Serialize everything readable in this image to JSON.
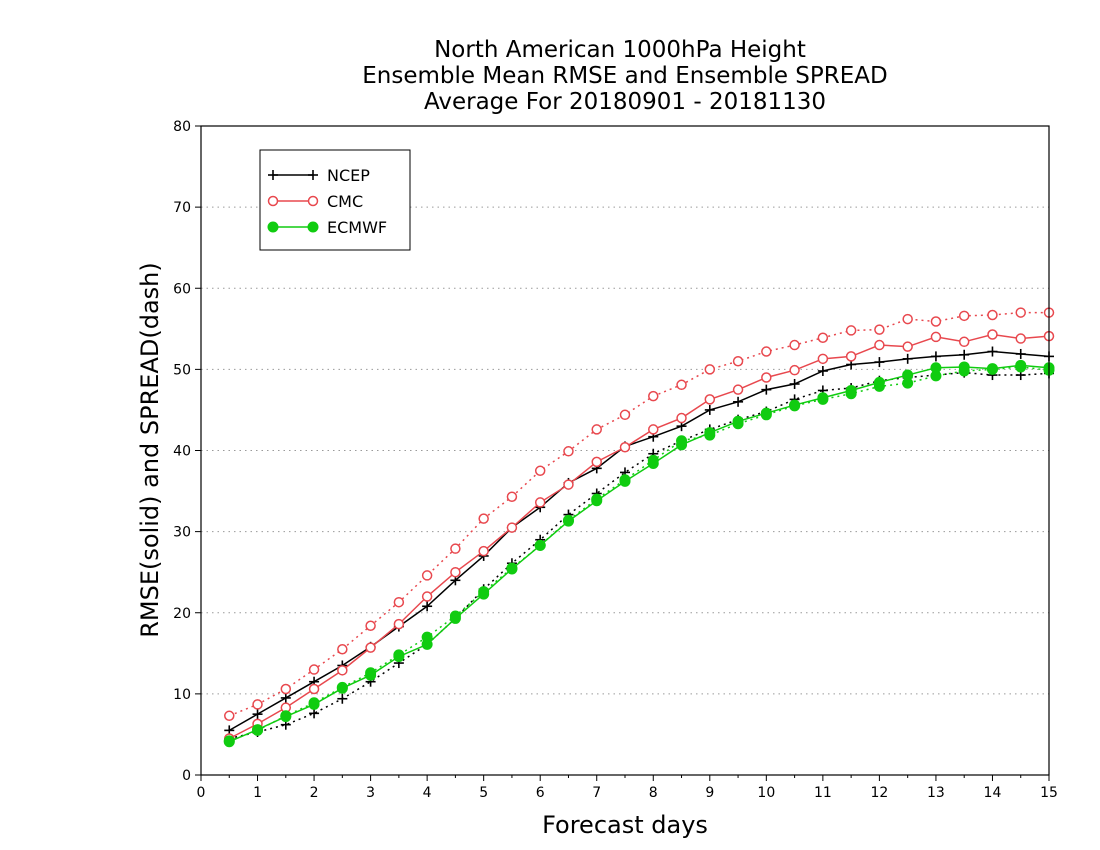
{
  "chart_data": {
    "type": "line",
    "title_lines": [
      "North American 1000hPa Height",
      "Ensemble Mean RMSE and Ensemble SPREAD",
      "Average For 20180901 - 20181130"
    ],
    "xlabel": "Forecast days",
    "ylabel": "RMSE(solid) and SPREAD(dash)",
    "xlim": [
      0,
      15
    ],
    "ylim": [
      0,
      80
    ],
    "xticks": [
      0,
      1,
      2,
      3,
      4,
      5,
      6,
      7,
      8,
      9,
      10,
      11,
      12,
      13,
      14,
      15
    ],
    "yticks": [
      0,
      10,
      20,
      30,
      40,
      50,
      60,
      70,
      80
    ],
    "grid": "horizontal dotted",
    "legend_position": "top-left",
    "x": [
      0.5,
      1,
      1.5,
      2,
      2.5,
      3,
      3.5,
      4,
      4.5,
      5,
      5.5,
      6,
      6.5,
      7,
      7.5,
      8,
      8.5,
      9,
      9.5,
      10,
      10.5,
      11,
      11.5,
      12,
      12.5,
      13,
      13.5,
      14,
      14.5,
      15
    ],
    "series": [
      {
        "name": "NCEP",
        "color": "#000000",
        "marker": "plus",
        "rmse": [
          5.5,
          7.5,
          9.5,
          11.5,
          13.5,
          15.8,
          18.3,
          20.8,
          24.0,
          27.0,
          30.5,
          33.0,
          36.0,
          37.8,
          40.5,
          41.7,
          43.0,
          45.0,
          46.0,
          47.5,
          48.2,
          49.8,
          50.6,
          50.9,
          51.3,
          51.6,
          51.8,
          52.2,
          51.9,
          51.6
        ],
        "spread": [
          4.5,
          5.3,
          6.2,
          7.6,
          9.4,
          11.5,
          13.8,
          16.1,
          19.3,
          22.9,
          26.1,
          29.0,
          32.1,
          34.7,
          37.3,
          39.6,
          41.2,
          42.6,
          43.8,
          44.8,
          46.3,
          47.4,
          47.7,
          48.6,
          49.0,
          49.3,
          49.6,
          49.3,
          49.3,
          49.5
        ]
      },
      {
        "name": "CMC",
        "color": "#e8484e",
        "marker": "circle-open",
        "rmse": [
          4.5,
          6.3,
          8.3,
          10.6,
          12.9,
          15.7,
          18.6,
          22.0,
          25.0,
          27.6,
          30.5,
          33.6,
          35.8,
          38.6,
          40.4,
          42.6,
          44.0,
          46.3,
          47.5,
          49.0,
          49.9,
          51.3,
          51.6,
          53.0,
          52.8,
          54.0,
          53.4,
          54.3,
          53.8,
          54.1
        ],
        "spread": [
          7.3,
          8.7,
          10.6,
          13.0,
          15.5,
          18.4,
          21.3,
          24.6,
          27.9,
          31.6,
          34.3,
          37.5,
          39.9,
          42.6,
          44.4,
          46.7,
          48.1,
          50.0,
          51.0,
          52.2,
          53.0,
          53.9,
          54.8,
          54.9,
          56.2,
          55.9,
          56.6,
          56.7,
          57.0,
          57.0
        ]
      },
      {
        "name": "ECMWF",
        "color": "#10cc10",
        "marker": "circle-filled",
        "rmse": [
          4.1,
          5.6,
          7.2,
          8.7,
          10.7,
          12.3,
          14.6,
          16.1,
          19.3,
          22.3,
          25.4,
          28.3,
          31.3,
          33.8,
          36.2,
          38.4,
          40.7,
          42.2,
          43.6,
          44.6,
          45.6,
          46.5,
          47.4,
          48.4,
          49.3,
          50.2,
          50.3,
          50.1,
          50.5,
          50.2
        ],
        "spread": [
          4.2,
          5.5,
          7.3,
          8.9,
          10.8,
          12.6,
          14.8,
          17.0,
          19.6,
          22.6,
          25.5,
          28.3,
          31.4,
          34.0,
          36.4,
          38.8,
          41.2,
          41.9,
          43.3,
          44.4,
          45.5,
          46.3,
          47.0,
          47.9,
          48.3,
          49.2,
          49.8,
          50.0,
          50.3,
          49.9
        ]
      }
    ]
  }
}
